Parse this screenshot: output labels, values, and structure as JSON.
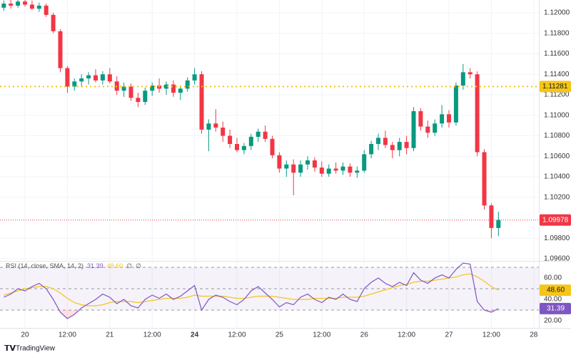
{
  "chart_data": [
    {
      "type": "candlestick",
      "x": [
        -6,
        -4,
        -2,
        0,
        2,
        4,
        6,
        8,
        10,
        12,
        14,
        16,
        18,
        20,
        22,
        24,
        26,
        28,
        30,
        32,
        34,
        36,
        38,
        40,
        42,
        44,
        46,
        48,
        50,
        52,
        54,
        56,
        58,
        60,
        62,
        64,
        66,
        68,
        70,
        72,
        74,
        76,
        78,
        80,
        82,
        84,
        86,
        88,
        90,
        92,
        94,
        96,
        98,
        100,
        102,
        104,
        106,
        108,
        110,
        112,
        114,
        116,
        118,
        120,
        122,
        124,
        126,
        128,
        130,
        132,
        134
      ],
      "open": [
        1.1205,
        1.1209,
        1.1207,
        1.1211,
        1.1208,
        1.1204,
        1.1207,
        1.1198,
        1.1182,
        1.1146,
        1.1128,
        1.1133,
        1.1136,
        1.1139,
        1.1134,
        1.114,
        1.1133,
        1.1124,
        1.1128,
        1.1117,
        1.1113,
        1.1124,
        1.1129,
        1.1126,
        1.113,
        1.1122,
        1.1126,
        1.1134,
        1.114,
        1.1086,
        1.1092,
        1.1088,
        1.108,
        1.1072,
        1.1066,
        1.107,
        1.1079,
        1.1084,
        1.1077,
        1.1061,
        1.1048,
        1.1052,
        1.1044,
        1.1052,
        1.1056,
        1.1049,
        1.1043,
        1.1048,
        1.1046,
        1.105,
        1.1044,
        1.1046,
        1.1062,
        1.1072,
        1.1078,
        1.1071,
        1.1066,
        1.1074,
        1.1068,
        1.1104,
        1.1089,
        1.1083,
        1.1092,
        1.1101,
        1.1093,
        1.1129,
        1.1142,
        1.114,
        1.1064,
        1.1012,
        1.099
      ],
      "high": [
        1.1212,
        1.1213,
        1.1213,
        1.1214,
        1.1212,
        1.121,
        1.1209,
        1.12,
        1.1184,
        1.1148,
        1.1136,
        1.114,
        1.1142,
        1.1145,
        1.1143,
        1.1146,
        1.1138,
        1.1132,
        1.1131,
        1.1122,
        1.1127,
        1.1132,
        1.1136,
        1.1133,
        1.1134,
        1.1129,
        1.1137,
        1.1146,
        1.1143,
        1.1096,
        1.1106,
        1.1094,
        1.1086,
        1.1078,
        1.1073,
        1.1082,
        1.1087,
        1.109,
        1.108,
        1.1064,
        1.1056,
        1.1057,
        1.1056,
        1.106,
        1.1059,
        1.1055,
        1.1052,
        1.1054,
        1.1054,
        1.1053,
        1.105,
        1.1066,
        1.1075,
        1.1082,
        1.1085,
        1.1074,
        1.1078,
        1.108,
        1.1108,
        1.1107,
        1.1095,
        1.1096,
        1.111,
        1.1105,
        1.1132,
        1.115,
        1.1146,
        1.1143,
        1.1067,
        1.1014,
        1.1006
      ],
      "low": [
        1.1202,
        1.1204,
        1.1205,
        1.1206,
        1.1203,
        1.1201,
        1.1196,
        1.118,
        1.1142,
        1.1122,
        1.1124,
        1.1128,
        1.113,
        1.1132,
        1.113,
        1.1131,
        1.112,
        1.1118,
        1.1114,
        1.1108,
        1.111,
        1.1119,
        1.1122,
        1.112,
        1.1118,
        1.1115,
        1.1123,
        1.113,
        1.1082,
        1.1065,
        1.1084,
        1.1074,
        1.1068,
        1.1064,
        1.1062,
        1.1066,
        1.1074,
        1.1074,
        1.1058,
        1.1044,
        1.104,
        1.1022,
        1.104,
        1.1047,
        1.1045,
        1.104,
        1.104,
        1.1043,
        1.1042,
        1.104,
        1.1039,
        1.1044,
        1.1058,
        1.1066,
        1.1068,
        1.1058,
        1.106,
        1.1062,
        1.1065,
        1.1085,
        1.1078,
        1.108,
        1.1088,
        1.1088,
        1.109,
        1.1125,
        1.1136,
        1.106,
        1.1008,
        1.098,
        1.0982
      ],
      "close": [
        1.1209,
        1.1207,
        1.1211,
        1.1208,
        1.1204,
        1.1207,
        1.1198,
        1.1182,
        1.1146,
        1.1128,
        1.1133,
        1.1136,
        1.1139,
        1.1134,
        1.114,
        1.1133,
        1.1124,
        1.1128,
        1.1117,
        1.1113,
        1.1124,
        1.1129,
        1.1126,
        1.113,
        1.1122,
        1.1126,
        1.1134,
        1.114,
        1.1086,
        1.1092,
        1.1088,
        1.108,
        1.1072,
        1.1066,
        1.107,
        1.1079,
        1.1084,
        1.1077,
        1.1061,
        1.1048,
        1.1052,
        1.1044,
        1.1052,
        1.1056,
        1.1049,
        1.1043,
        1.1048,
        1.1046,
        1.105,
        1.1044,
        1.1046,
        1.1062,
        1.1072,
        1.1078,
        1.1071,
        1.1066,
        1.1074,
        1.1068,
        1.1104,
        1.1089,
        1.1083,
        1.1092,
        1.1101,
        1.1093,
        1.1129,
        1.1142,
        1.114,
        1.1064,
        1.1012,
        1.099,
        1.09978
      ],
      "up_color": "#089981",
      "down_color": "#f23645",
      "xlim": [
        -7.07,
        145.45
      ],
      "xticks": [
        {
          "value": 0,
          "label": "20"
        },
        {
          "value": 12,
          "label": "12:00"
        },
        {
          "value": 24,
          "label": "21"
        },
        {
          "value": 36,
          "label": "12:00"
        },
        {
          "value": 48,
          "label": "24",
          "bold": true
        },
        {
          "value": 60,
          "label": "12:00"
        },
        {
          "value": 72,
          "label": "25"
        },
        {
          "value": 84,
          "label": "12:00"
        },
        {
          "value": 96,
          "label": "26"
        },
        {
          "value": 108,
          "label": "12:00"
        },
        {
          "value": 120,
          "label": "27"
        },
        {
          "value": 132,
          "label": "12:00"
        },
        {
          "value": 144,
          "label": "28"
        }
      ],
      "ylim": [
        1.09586,
        1.12125
      ],
      "yticks": [
        {
          "value": 1.12,
          "label": "1.12000"
        },
        {
          "value": 1.118,
          "label": "1.11800"
        },
        {
          "value": 1.116,
          "label": "1.11600"
        },
        {
          "value": 1.114,
          "label": "1.11400"
        },
        {
          "value": 1.112,
          "label": "1.11200"
        },
        {
          "value": 1.11,
          "label": "1.11000"
        },
        {
          "value": 1.108,
          "label": "1.10800"
        },
        {
          "value": 1.106,
          "label": "1.10600"
        },
        {
          "value": 1.104,
          "label": "1.10400"
        },
        {
          "value": 1.102,
          "label": "1.10200"
        },
        {
          "value": 1.098,
          "label": "1.09800"
        },
        {
          "value": 1.096,
          "label": "1.09600"
        }
      ],
      "grid": true,
      "price_lines": [
        {
          "value": 1.11281,
          "color": "#f5c518"
        },
        {
          "value": 1.09978,
          "color": "#f23645"
        }
      ]
    },
    {
      "type": "line",
      "title": "RSI (14, close, SMA, 14, 2)",
      "title_extras": [
        "∅",
        "∅"
      ],
      "x": [
        -6,
        -4,
        -2,
        0,
        2,
        4,
        6,
        8,
        10,
        12,
        14,
        16,
        18,
        20,
        22,
        24,
        26,
        28,
        30,
        32,
        34,
        36,
        38,
        40,
        42,
        44,
        46,
        48,
        50,
        52,
        54,
        56,
        58,
        60,
        62,
        64,
        66,
        68,
        70,
        72,
        74,
        76,
        78,
        80,
        82,
        84,
        86,
        88,
        90,
        92,
        94,
        96,
        98,
        100,
        102,
        104,
        106,
        108,
        110,
        112,
        114,
        116,
        118,
        120,
        122,
        124,
        126,
        128,
        130,
        132,
        134
      ],
      "series": [
        {
          "color": "#7e57c2",
          "values": [
            42,
            45,
            50,
            48,
            52,
            55,
            50,
            40,
            28,
            22,
            26,
            32,
            36,
            40,
            45,
            42,
            36,
            40,
            34,
            32,
            40,
            44,
            41,
            45,
            40,
            43,
            48,
            53,
            30,
            40,
            44,
            42,
            38,
            35,
            40,
            48,
            52,
            46,
            40,
            33,
            37,
            35,
            42,
            45,
            40,
            37,
            42,
            40,
            45,
            40,
            38,
            50,
            56,
            60,
            55,
            52,
            56,
            53,
            65,
            58,
            55,
            60,
            63,
            60,
            68,
            74,
            73,
            38,
            30,
            28,
            31.39
          ]
        },
        {
          "color": "#f5c518",
          "last_label": "48.60",
          "values": [
            44,
            46,
            48,
            50,
            51,
            52,
            52,
            50,
            46,
            41,
            37,
            35,
            34,
            34,
            35,
            37,
            38,
            38,
            38,
            37,
            38,
            39,
            40,
            41,
            41,
            41,
            42,
            44,
            43,
            43,
            43,
            43,
            42,
            41,
            41,
            42,
            43,
            43,
            43,
            42,
            41,
            40,
            40,
            40,
            41,
            41,
            41,
            41,
            42,
            42,
            42,
            43,
            45,
            47,
            49,
            51,
            53,
            54,
            56,
            57,
            57,
            58,
            59,
            60,
            61,
            63,
            64,
            61,
            57,
            52,
            48.6
          ]
        }
      ],
      "xlim": [
        -7.07,
        145.45
      ],
      "ylim": [
        13.3,
        74.7
      ],
      "yticks": [
        {
          "value": 60,
          "label": "60.00"
        },
        {
          "value": 40,
          "label": "40.00"
        },
        {
          "value": 20,
          "label": "20.00"
        }
      ],
      "bands": [
        70,
        50,
        30
      ],
      "band_color": "#7e57c2"
    }
  ],
  "footer": {
    "logo": "TradingView"
  }
}
